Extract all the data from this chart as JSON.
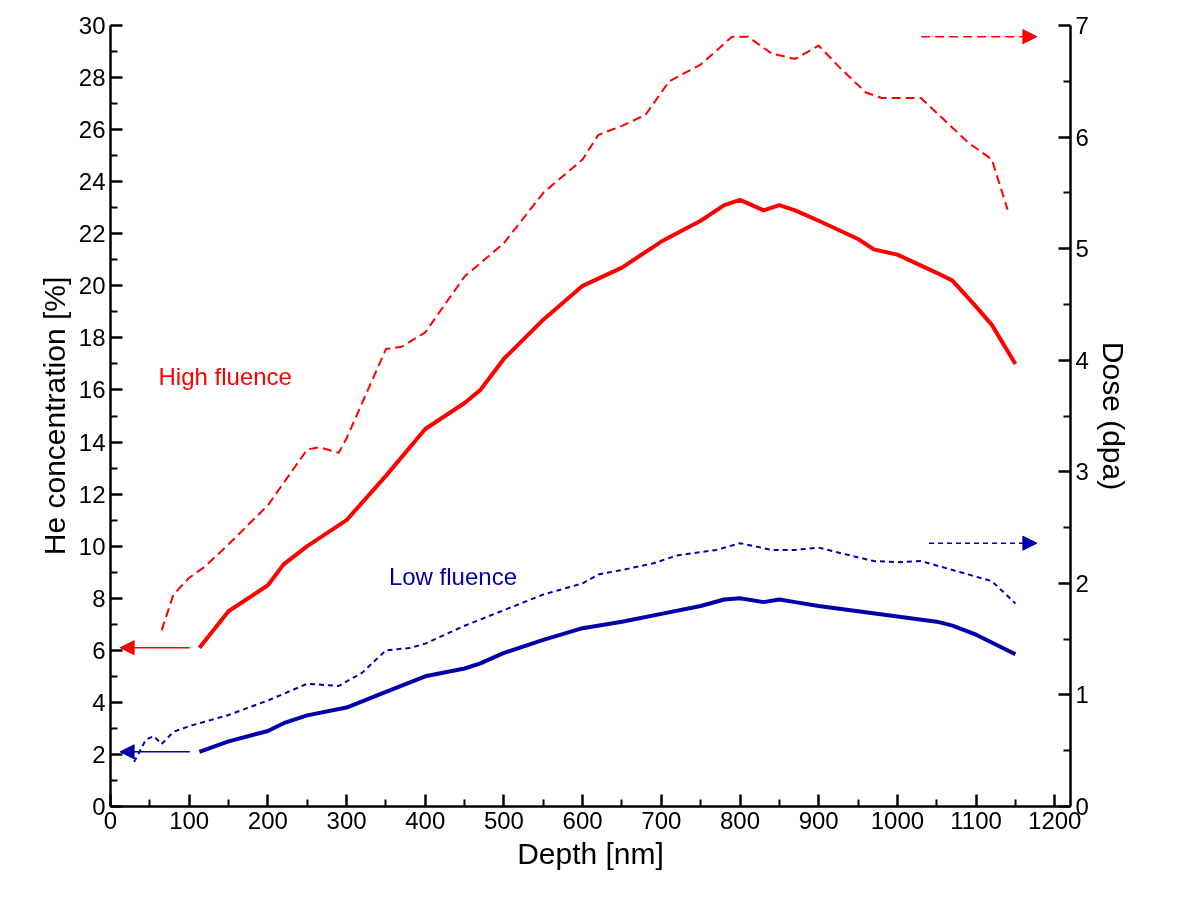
{
  "chart_data": {
    "type": "line",
    "xlabel": "Depth [nm]",
    "ylabel": "He concentration [%]",
    "y2label": "Dose (dpa)",
    "xlim": [
      0,
      1220
    ],
    "xticks": [
      0,
      100,
      200,
      300,
      400,
      500,
      600,
      700,
      800,
      900,
      1000,
      1100,
      1200
    ],
    "ylim": [
      0,
      30
    ],
    "yticks": [
      0,
      2,
      4,
      6,
      8,
      10,
      12,
      14,
      16,
      18,
      20,
      22,
      24,
      26,
      28,
      30
    ],
    "y2lim": [
      0,
      7
    ],
    "y2ticks": [
      0,
      1,
      2,
      3,
      4,
      5,
      6,
      7
    ],
    "grid": false,
    "marker": "none",
    "annotations": [
      "High fluence",
      "Low fluence"
    ],
    "series": [
      {
        "color": "#ff0000",
        "line_style": "solid",
        "x": [
          113,
          150,
          200,
          220,
          250,
          300,
          350,
          400,
          450,
          470,
          500,
          550,
          600,
          650,
          700,
          750,
          780,
          800,
          830,
          850,
          870,
          900,
          950,
          970,
          1000,
          1050,
          1070,
          1100,
          1120,
          1150
        ],
        "values": [
          6.1,
          7.5,
          8.5,
          9.3,
          10.0,
          11.0,
          12.7,
          14.5,
          15.5,
          16.0,
          17.2,
          18.7,
          20.0,
          20.7,
          21.7,
          22.5,
          23.1,
          23.3,
          22.9,
          23.1,
          22.9,
          22.5,
          21.8,
          21.4,
          21.2,
          20.5,
          20.2,
          19.2,
          18.5,
          17.0
        ]
      },
      {
        "color": "#0000aa",
        "line_style": "solid",
        "x": [
          113,
          150,
          200,
          220,
          250,
          300,
          350,
          400,
          450,
          470,
          500,
          550,
          600,
          650,
          700,
          750,
          780,
          800,
          830,
          850,
          870,
          900,
          950,
          1000,
          1050,
          1070,
          1100,
          1150
        ],
        "values": [
          2.1,
          2.5,
          2.9,
          3.2,
          3.5,
          3.8,
          4.4,
          5.0,
          5.3,
          5.5,
          5.9,
          6.4,
          6.85,
          7.1,
          7.4,
          7.7,
          7.95,
          8.0,
          7.85,
          7.95,
          7.85,
          7.7,
          7.5,
          7.3,
          7.1,
          6.95,
          6.6,
          5.85
        ]
      },
      {
        "color": "#ff0000",
        "line_style": "dashed",
        "axis": "y2",
        "x": [
          65,
          80,
          100,
          120,
          150,
          200,
          250,
          265,
          290,
          300,
          350,
          370,
          400,
          450,
          500,
          550,
          600,
          620,
          650,
          680,
          710,
          750,
          790,
          810,
          840,
          870,
          900,
          930,
          960,
          980,
          1030,
          1060,
          1090,
          1120,
          1140
        ],
        "values": [
          1.58,
          1.9,
          2.05,
          2.15,
          2.35,
          2.7,
          3.2,
          3.22,
          3.17,
          3.3,
          4.1,
          4.12,
          4.25,
          4.75,
          5.05,
          5.5,
          5.8,
          6.02,
          6.1,
          6.2,
          6.5,
          6.65,
          6.9,
          6.9,
          6.75,
          6.7,
          6.82,
          6.6,
          6.4,
          6.35,
          6.35,
          6.15,
          5.95,
          5.8,
          5.35
        ]
      },
      {
        "color": "#0000aa",
        "line_style": "dotted",
        "axis": "y2",
        "x": [
          30,
          45,
          55,
          65,
          80,
          100,
          150,
          200,
          250,
          290,
          320,
          350,
          380,
          400,
          450,
          500,
          550,
          600,
          620,
          650,
          690,
          720,
          770,
          800,
          840,
          870,
          900,
          940,
          970,
          1000,
          1030,
          1070,
          1100,
          1120,
          1150
        ],
        "values": [
          0.4,
          0.6,
          0.63,
          0.56,
          0.67,
          0.72,
          0.82,
          0.95,
          1.1,
          1.08,
          1.2,
          1.4,
          1.42,
          1.46,
          1.62,
          1.76,
          1.9,
          2.0,
          2.08,
          2.12,
          2.18,
          2.25,
          2.3,
          2.36,
          2.3,
          2.3,
          2.32,
          2.25,
          2.2,
          2.19,
          2.2,
          2.12,
          2.06,
          2.02,
          1.82
        ]
      }
    ]
  }
}
